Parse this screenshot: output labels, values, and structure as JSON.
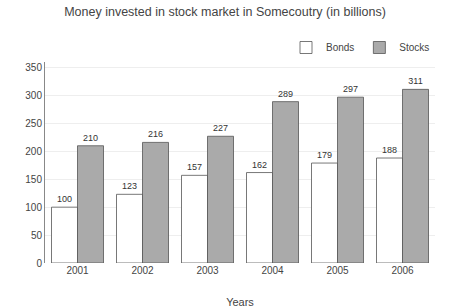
{
  "chart_data": {
    "type": "bar",
    "title": "Money invested in stock market in Somecoutry (in billions)",
    "xlabel": "Years",
    "categories": [
      "2001",
      "2002",
      "2003",
      "2004",
      "2005",
      "2006"
    ],
    "series": [
      {
        "name": "Bonds",
        "color": "#ffffff",
        "values": [
          100,
          123,
          157,
          162,
          179,
          188
        ]
      },
      {
        "name": "Stocks",
        "color": "#aaaaaa",
        "values": [
          210,
          216,
          227,
          289,
          297,
          311
        ]
      }
    ],
    "ylim": [
      0,
      360
    ],
    "yticks": [
      0,
      50,
      100,
      150,
      200,
      250,
      300,
      350
    ],
    "grid": true,
    "legend": "upper right",
    "data_labels": true
  }
}
